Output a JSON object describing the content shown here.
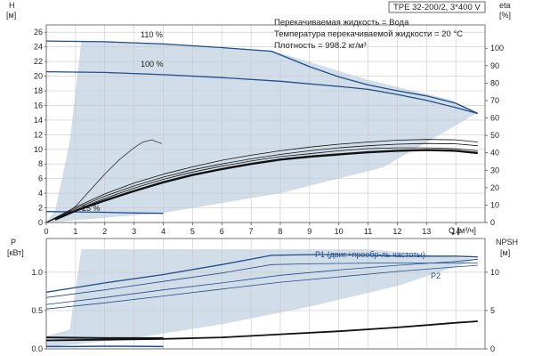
{
  "header": {
    "model": "TPE 32-200/2, 3*400 V",
    "info_lines": [
      "Перекачиваемая жидкость = Вода",
      "Температура перекачиваемой жидкости = 20 °C",
      "Плотность = 998.2 кг/м³"
    ]
  },
  "colors": {
    "region": "#c9d7e5",
    "curve": "#1f4e8c",
    "black": "#111111",
    "thin": "#333333",
    "grid": "#c8c8c8"
  },
  "chart_data": [
    {
      "type": "line",
      "name": "head-curve",
      "xlabel": "Q [м³/ч]",
      "ylabel": "H",
      "ylabel_unit": "[м]",
      "y2label": "eta",
      "y2label_unit": "[%]",
      "xlim": [
        0,
        15
      ],
      "ylim": [
        0,
        27
      ],
      "y2lim": [
        0,
        113.4
      ],
      "x_ticks": [
        "0",
        "1",
        "2",
        "3",
        "4",
        "5",
        "6",
        "7",
        "8",
        "9",
        "10",
        "11",
        "12",
        "13",
        "14"
      ],
      "y_ticks": [
        "0",
        "2",
        "4",
        "6",
        "8",
        "10",
        "12",
        "14",
        "16",
        "18",
        "20",
        "22",
        "24",
        "26"
      ],
      "y2_ticks": [
        "0",
        "10",
        "20",
        "30",
        "40",
        "50",
        "60",
        "70",
        "80",
        "90",
        "100"
      ],
      "grid": true,
      "curve_labels": [
        {
          "text": "110 %",
          "x": 3.6,
          "y": 25.0
        },
        {
          "text": "100 %",
          "x": 3.6,
          "y": 21.0
        },
        {
          "text": "25 %",
          "x": 1.7,
          "y": 1.6
        }
      ],
      "operating_region": [
        [
          0,
          0
        ],
        [
          0.3,
          1.6
        ],
        [
          0.8,
          11
        ],
        [
          1.2,
          24.8
        ],
        [
          4,
          24.5
        ],
        [
          7.7,
          23.5
        ],
        [
          11,
          19.5
        ],
        [
          13.8,
          16.8
        ],
        [
          14.75,
          15
        ],
        [
          11.5,
          7.5
        ],
        [
          8,
          4
        ],
        [
          4,
          1.3
        ],
        [
          0,
          0
        ]
      ],
      "series": [
        {
          "name": "110 %",
          "role": "head",
          "points": [
            [
              0,
              24.8
            ],
            [
              2,
              24.7
            ],
            [
              4,
              24.4
            ],
            [
              6,
              23.9
            ],
            [
              7.7,
              23.4
            ],
            [
              9,
              21.3
            ],
            [
              10,
              19.9
            ],
            [
              11,
              18.8
            ],
            [
              12,
              18.0
            ],
            [
              13,
              17.3
            ],
            [
              14,
              16.3
            ],
            [
              14.75,
              14.9
            ]
          ]
        },
        {
          "name": "100 %",
          "role": "head",
          "points": [
            [
              0,
              20.6
            ],
            [
              2,
              20.5
            ],
            [
              4,
              20.2
            ],
            [
              6,
              19.8
            ],
            [
              8,
              19.3
            ],
            [
              10,
              18.6
            ],
            [
              11,
              18.2
            ],
            [
              12,
              17.5
            ],
            [
              13,
              16.7
            ],
            [
              14,
              15.7
            ],
            [
              14.75,
              14.9
            ]
          ]
        },
        {
          "name": "25 %",
          "role": "head",
          "points": [
            [
              0,
              1.5
            ],
            [
              1,
              1.45
            ],
            [
              2,
              1.4
            ],
            [
              3,
              1.3
            ],
            [
              4,
              1.25
            ]
          ]
        },
        {
          "name": "",
          "role": "eta-25",
          "points": [
            [
              0.5,
              0.8
            ],
            [
              1,
              2.2
            ],
            [
              1.5,
              4.4
            ],
            [
              2,
              6.6
            ],
            [
              2.5,
              8.6
            ],
            [
              3,
              10.2
            ],
            [
              3.3,
              11.0
            ],
            [
              3.6,
              11.3
            ],
            [
              3.8,
              11.0
            ],
            [
              3.95,
              10.8
            ]
          ]
        },
        {
          "name": "",
          "role": "eta-110",
          "points": [
            [
              0,
              0
            ],
            [
              1,
              2.1
            ],
            [
              2,
              3.9
            ],
            [
              3,
              5.4
            ],
            [
              4,
              6.6
            ],
            [
              5,
              7.6
            ],
            [
              6,
              8.5
            ],
            [
              7,
              9.2
            ],
            [
              8,
              9.8
            ],
            [
              9,
              10.3
            ],
            [
              10,
              10.7
            ],
            [
              11,
              11.0
            ],
            [
              12,
              11.25
            ],
            [
              13,
              11.35
            ],
            [
              14,
              11.3
            ],
            [
              14.75,
              11.0
            ]
          ]
        },
        {
          "name": "",
          "role": "eta-100",
          "points": [
            [
              0,
              0
            ],
            [
              1,
              1.9
            ],
            [
              2,
              3.6
            ],
            [
              3,
              5.0
            ],
            [
              4,
              6.2
            ],
            [
              5,
              7.2
            ],
            [
              6,
              8.0
            ],
            [
              7,
              8.7
            ],
            [
              8,
              9.3
            ],
            [
              9,
              9.8
            ],
            [
              10,
              10.2
            ],
            [
              11,
              10.5
            ],
            [
              12,
              10.7
            ],
            [
              13,
              10.8
            ],
            [
              14,
              10.75
            ],
            [
              14.75,
              10.5
            ]
          ]
        },
        {
          "name": "",
          "role": "eta-100b",
          "points": [
            [
              0,
              0
            ],
            [
              1,
              1.7
            ],
            [
              2,
              3.3
            ],
            [
              3,
              4.7
            ],
            [
              4,
              5.9
            ],
            [
              5,
              6.9
            ],
            [
              6,
              7.7
            ],
            [
              7,
              8.4
            ],
            [
              8,
              9.0
            ],
            [
              9,
              9.4
            ],
            [
              10,
              9.8
            ],
            [
              11,
              10.1
            ],
            [
              12,
              10.2
            ],
            [
              13,
              10.2
            ],
            [
              14,
              10.1
            ],
            [
              14.75,
              9.8
            ]
          ]
        },
        {
          "name": "",
          "role": "eta-thick",
          "points": [
            [
              0.3,
              0.4
            ],
            [
              1,
              1.6
            ],
            [
              2,
              3.0
            ],
            [
              3,
              4.3
            ],
            [
              4,
              5.5
            ],
            [
              5,
              6.5
            ],
            [
              6,
              7.3
            ],
            [
              7,
              8.0
            ],
            [
              8,
              8.6
            ],
            [
              9,
              9.0
            ],
            [
              10,
              9.3
            ],
            [
              11,
              9.6
            ],
            [
              12,
              9.8
            ],
            [
              13,
              9.9
            ],
            [
              14,
              9.8
            ],
            [
              14.75,
              9.5
            ]
          ]
        }
      ]
    },
    {
      "type": "line",
      "name": "power-curve",
      "xlabel": "",
      "ylabel": "P",
      "ylabel_unit": "[кВт]",
      "y2label": "NPSH",
      "y2label_unit": "[м]",
      "xlim": [
        0,
        15
      ],
      "ylim": [
        0,
        1.44
      ],
      "y2lim": [
        0,
        14.4
      ],
      "y_ticks": [
        "0.0",
        "0.5",
        "1.0"
      ],
      "y2_ticks": [
        "0",
        "5",
        "10"
      ],
      "grid": true,
      "curve_labels": [
        {
          "text": "P1 (двиг.+преобр-ль частоты)",
          "x": 10.0,
          "y": 1.27
        },
        {
          "text": "P2",
          "x": 14.3,
          "y": 1.0
        }
      ],
      "operating_region": [
        [
          0,
          0.17
        ],
        [
          0.8,
          0.25
        ],
        [
          1.2,
          1.3
        ],
        [
          4,
          1.3
        ],
        [
          7.7,
          1.3
        ],
        [
          11,
          1.3
        ],
        [
          14.75,
          1.17
        ],
        [
          12,
          0.82
        ],
        [
          9,
          0.55
        ],
        [
          6,
          0.32
        ],
        [
          3,
          0.14
        ],
        [
          0,
          0.02
        ]
      ],
      "series": [
        {
          "name": "P1 (двиг.+преобр-ль частоты)",
          "role": "P1-110",
          "points": [
            [
              0,
              0.74
            ],
            [
              1,
              0.8
            ],
            [
              2,
              0.86
            ],
            [
              4,
              0.97
            ],
            [
              6,
              1.1
            ],
            [
              7.7,
              1.22
            ],
            [
              9,
              1.23
            ],
            [
              10,
              1.23
            ],
            [
              11,
              1.22
            ],
            [
              12,
              1.21
            ],
            [
              13,
              1.21
            ],
            [
              14,
              1.21
            ],
            [
              14.75,
              1.2
            ]
          ]
        },
        {
          "name": "",
          "role": "P2-110",
          "points": [
            [
              0,
              0.67
            ],
            [
              2,
              0.77
            ],
            [
              4,
              0.88
            ],
            [
              6,
              0.99
            ],
            [
              7.7,
              1.1
            ],
            [
              9,
              1.11
            ],
            [
              11,
              1.12
            ],
            [
              13,
              1.12
            ],
            [
              14.75,
              1.12
            ]
          ]
        },
        {
          "name": "",
          "role": "P1-100",
          "points": [
            [
              0,
              0.58
            ],
            [
              2,
              0.67
            ],
            [
              4,
              0.77
            ],
            [
              6,
              0.86
            ],
            [
              8,
              0.96
            ],
            [
              10,
              1.03
            ],
            [
              12,
              1.09
            ],
            [
              14,
              1.14
            ],
            [
              14.75,
              1.17
            ]
          ]
        },
        {
          "name": "P2",
          "role": "P2-100",
          "points": [
            [
              0,
              0.52
            ],
            [
              2,
              0.6
            ],
            [
              4,
              0.69
            ],
            [
              6,
              0.78
            ],
            [
              8,
              0.87
            ],
            [
              10,
              0.94
            ],
            [
              12,
              1.01
            ],
            [
              14,
              1.07
            ],
            [
              14.75,
              1.09
            ]
          ]
        },
        {
          "name": "",
          "role": "P1-25",
          "points": [
            [
              0,
              0.15
            ],
            [
              1,
              0.145
            ],
            [
              2,
              0.14
            ],
            [
              4,
              0.14
            ]
          ]
        },
        {
          "name": "",
          "role": "P2-25",
          "points": [
            [
              0,
              0.03
            ],
            [
              1,
              0.03
            ],
            [
              2,
              0.035
            ],
            [
              4,
              0.03
            ]
          ]
        },
        {
          "name": "",
          "role": "NPSH",
          "axis": "y2",
          "points": [
            [
              0,
              1.1
            ],
            [
              2,
              1.2
            ],
            [
              4,
              1.3
            ],
            [
              6,
              1.5
            ],
            [
              8,
              1.9
            ],
            [
              10,
              2.3
            ],
            [
              12,
              2.8
            ],
            [
              13,
              3.1
            ],
            [
              14,
              3.4
            ],
            [
              14.75,
              3.6
            ]
          ]
        }
      ]
    }
  ]
}
